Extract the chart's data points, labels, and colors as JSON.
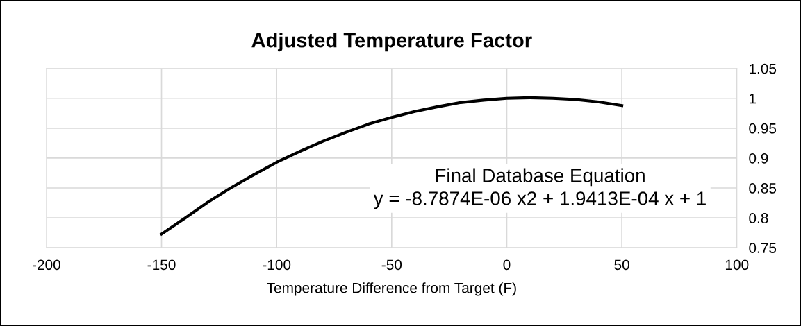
{
  "chart_data": {
    "type": "line",
    "title": "Adjusted Temperature Factor",
    "xlabel": "Temperature Difference from Target (F)",
    "x": [
      -150,
      -140,
      -130,
      -120,
      -110,
      -100,
      -90,
      -80,
      -70,
      -60,
      -50,
      -40,
      -30,
      -20,
      -10,
      0,
      10,
      20,
      30,
      40,
      50
    ],
    "series": [
      {
        "color": "#000000",
        "values": [
          0.773,
          0.799,
          0.826,
          0.85,
          0.872,
          0.893,
          0.911,
          0.928,
          0.943,
          0.957,
          0.968,
          0.978,
          0.986,
          0.993,
          0.997,
          1.0,
          1.001,
          1.0,
          0.998,
          0.994,
          0.988
        ]
      }
    ],
    "annotations": [
      "Final Database Equation\ny = -8.7874E-06 x2 + 1.9413E-04 x + 1"
    ],
    "xlim": [
      -200,
      100
    ],
    "xticks": [
      -200,
      -150,
      -100,
      -50,
      0,
      50,
      100
    ],
    "ylim": [
      0.75,
      1.05
    ],
    "yticks": [
      0.75,
      0.8,
      0.85,
      0.9,
      0.95,
      1,
      1.05
    ],
    "grid": true,
    "marker": "none",
    "line_style": "solid"
  }
}
